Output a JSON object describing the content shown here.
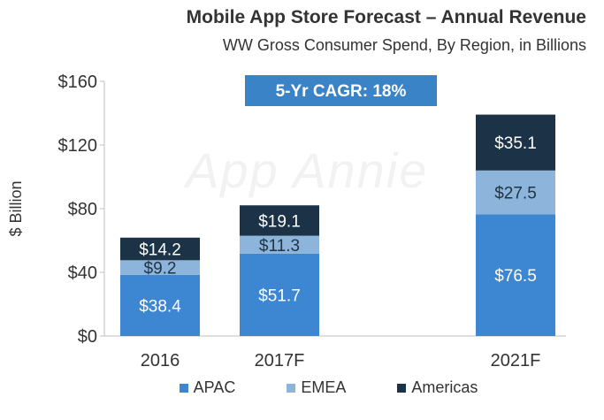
{
  "chart_data": {
    "type": "bar",
    "stacked": true,
    "title": "Mobile App Store Forecast – Annual Revenue",
    "subtitle": "WW Gross Consumer Spend, By Region, in Billions",
    "ylabel": "$ Billion",
    "xlabel": "",
    "ylim": [
      0,
      160
    ],
    "yticks": [
      "$0",
      "$40",
      "$80",
      "$120",
      "$160"
    ],
    "ytick_values": [
      0,
      40,
      80,
      120,
      160
    ],
    "categories": [
      "2016",
      "2017F",
      "2021F"
    ],
    "series": [
      {
        "name": "APAC",
        "values": [
          38.4,
          51.7,
          76.5
        ],
        "labels": [
          "$38.4",
          "$51.7",
          "$76.5"
        ],
        "color": "#3c86d2",
        "label_color": "#ffffff"
      },
      {
        "name": "EMEA",
        "values": [
          9.2,
          11.3,
          27.5
        ],
        "labels": [
          "$9.2",
          "$11.3",
          "$27.5"
        ],
        "color": "#8db4db",
        "label_color": "#1f3344"
      },
      {
        "name": "Americas",
        "values": [
          14.2,
          19.1,
          35.1
        ],
        "labels": [
          "$14.2",
          "$19.1",
          "$35.1"
        ],
        "color": "#1c3347",
        "label_color": "#ffffff"
      }
    ],
    "annotation": "5-Yr CAGR: 18%",
    "annotation_color": "#3b83c7",
    "legend_position": "bottom",
    "grid": false
  },
  "watermark": "App Annie"
}
